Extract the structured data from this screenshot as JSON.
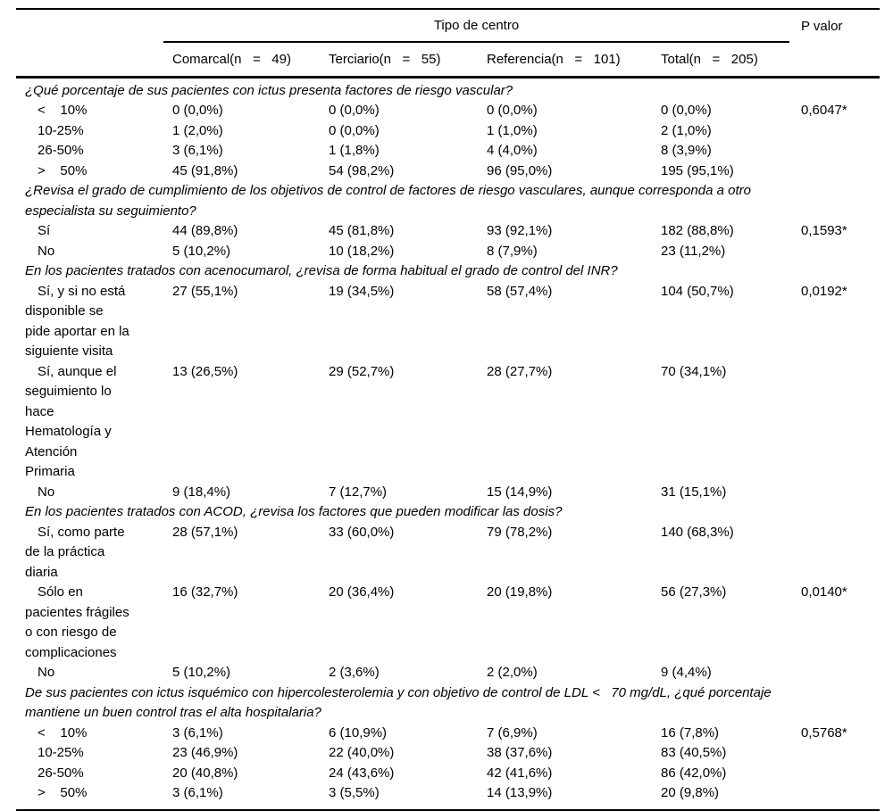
{
  "table": {
    "header": {
      "group_label": "Tipo de centro",
      "p_label": "P valor",
      "columns": [
        "Comarcal(n   =   49)",
        "Terciario(n   =   55)",
        "Referencia(n   =   101)",
        "Total(n   =   205)"
      ]
    },
    "sections": [
      {
        "question": "¿Qué porcentaje de sus pacientes con ictus presenta factores de riesgo vascular?",
        "rows": [
          {
            "label": "<    10%",
            "values": [
              "0 (0,0%)",
              "0 (0,0%)",
              "0 (0,0%)",
              "0 (0,0%)"
            ],
            "p": "0,6047*"
          },
          {
            "label": "10-25%",
            "values": [
              "1 (2,0%)",
              "0 (0,0%)",
              "1 (1,0%)",
              "2 (1,0%)"
            ],
            "p": ""
          },
          {
            "label": "26-50%",
            "values": [
              "3 (6,1%)",
              "1 (1,8%)",
              "4 (4,0%)",
              "8 (3,9%)"
            ],
            "p": ""
          },
          {
            "label": ">    50%",
            "values": [
              "45 (91,8%)",
              "54 (98,2%)",
              "96 (95,0%)",
              "195 (95,1%)"
            ],
            "p": ""
          }
        ]
      },
      {
        "question": "¿Revisa el grado de cumplimiento de los objetivos de control de factores de riesgo vasculares, aunque corresponda a otro\nespecialista su seguimiento?",
        "rows": [
          {
            "label": "Sí",
            "values": [
              "44 (89,8%)",
              "45 (81,8%)",
              "93 (92,1%)",
              "182 (88,8%)"
            ],
            "p": "0,1593*"
          },
          {
            "label": "No",
            "values": [
              "5 (10,2%)",
              "10 (18,2%)",
              "8 (7,9%)",
              "23 (11,2%)"
            ],
            "p": ""
          }
        ]
      },
      {
        "question": "En los pacientes tratados con acenocumarol, ¿revisa de forma habitual el grado de control del INR?",
        "rows": [
          {
            "label": "Sí, y si no está\ndisponible se\npide aportar en la\nsiguiente visita",
            "values": [
              "27 (55,1%)",
              "19 (34,5%)",
              "58 (57,4%)",
              "104 (50,7%)"
            ],
            "p": "0,0192*"
          },
          {
            "label": "Sí, aunque el\nseguimiento lo\nhace\nHematología y\nAtención\nPrimaria",
            "values": [
              "13 (26,5%)",
              "29 (52,7%)",
              "28 (27,7%)",
              "70 (34,1%)"
            ],
            "p": ""
          },
          {
            "label": "No",
            "values": [
              "9 (18,4%)",
              "7 (12,7%)",
              "15 (14,9%)",
              "31 (15,1%)"
            ],
            "p": ""
          }
        ]
      },
      {
        "question": "En los pacientes tratados con ACOD, ¿revisa los factores que pueden modificar las dosis?",
        "rows": [
          {
            "label": "Sí, como parte\nde la práctica\ndiaria",
            "values": [
              "28 (57,1%)",
              "33 (60,0%)",
              "79 (78,2%)",
              "140 (68,3%)"
            ],
            "p": ""
          },
          {
            "label": "Sólo en\npacientes frágiles\no con riesgo de\ncomplicaciones",
            "values": [
              "16 (32,7%)",
              "20 (36,4%)",
              "20 (19,8%)",
              "56 (27,3%)"
            ],
            "p": "0,0140*"
          },
          {
            "label": "No",
            "values": [
              "5 (10,2%)",
              "2 (3,6%)",
              "2 (2,0%)",
              "9 (4,4%)"
            ],
            "p": ""
          }
        ]
      },
      {
        "question": "De sus pacientes con ictus isquémico con hipercolesterolemia y con objetivo de control de LDL <   70 mg/dL, ¿qué porcentaje\nmantiene un buen control tras el alta hospitalaria?",
        "rows": [
          {
            "label": "<    10%",
            "values": [
              "3 (6,1%)",
              "6 (10,9%)",
              "7 (6,9%)",
              "16 (7,8%)"
            ],
            "p": "0,5768*"
          },
          {
            "label": "10-25%",
            "values": [
              "23 (46,9%)",
              "22 (40,0%)",
              "38 (37,6%)",
              "83 (40,5%)"
            ],
            "p": ""
          },
          {
            "label": "26-50%",
            "values": [
              "20 (40,8%)",
              "24 (43,6%)",
              "42 (41,6%)",
              "86 (42,0%)"
            ],
            "p": ""
          },
          {
            "label": ">    50%",
            "values": [
              "3 (6,1%)",
              "3 (5,5%)",
              "14 (13,9%)",
              "20 (9,8%)"
            ],
            "p": ""
          }
        ]
      }
    ]
  }
}
